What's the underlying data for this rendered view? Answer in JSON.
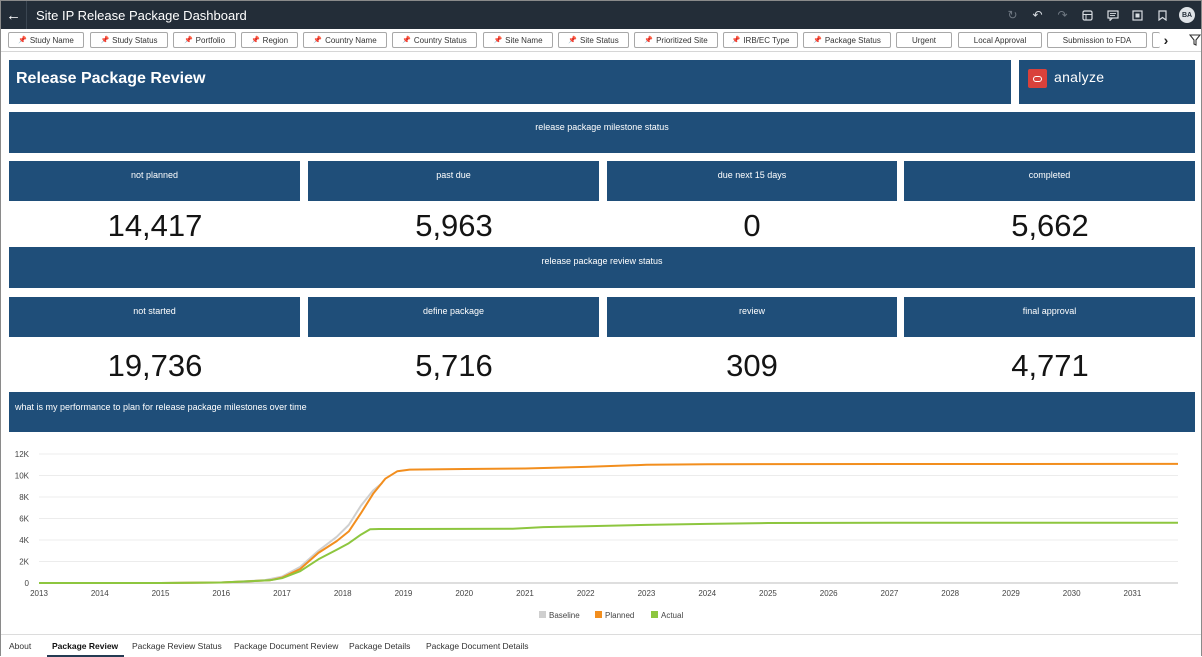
{
  "window": {
    "title": "Site IP Release Package Dashboard",
    "avatar_initials": "BA",
    "toolbar_icons": [
      "refresh-icon",
      "undo-icon",
      "redo-icon",
      "data-icon",
      "comment-icon",
      "present-icon",
      "bookmark-icon"
    ]
  },
  "filters": [
    "Study Name",
    "Study Status",
    "Portfolio",
    "Region",
    "Country Name",
    "Country Status",
    "Site Name",
    "Site Status",
    "Prioritized Site",
    "IRB/EC Type",
    "Package Status",
    "Urgent",
    "Local Approval",
    "Submission to FDA",
    ""
  ],
  "header": {
    "title": "Release Package Review",
    "analyze_label": "analyze",
    "brand_color": "#1f4e79",
    "logo_color": "#d9413b"
  },
  "milestone_status": {
    "banner": "release package milestone status",
    "cards": [
      {
        "label": "not planned",
        "value": "14,417"
      },
      {
        "label": "past due",
        "value": "5,963"
      },
      {
        "label": "due next 15 days",
        "value": "0"
      },
      {
        "label": "completed",
        "value": "5,662"
      }
    ]
  },
  "review_status": {
    "banner": "release package review status",
    "cards": [
      {
        "label": "not started",
        "value": "19,736"
      },
      {
        "label": "define package",
        "value": "5,716"
      },
      {
        "label": "review",
        "value": "309"
      },
      {
        "label": "final approval",
        "value": "4,771"
      }
    ]
  },
  "chart_header": "what is my performance to plan for release package milestones over time",
  "chart_data": {
    "type": "line",
    "title": "what is my performance to plan for release package milestones over time",
    "xlabel": "",
    "ylabel": "",
    "xlim": [
      2013,
      2031.75
    ],
    "ylim": [
      0,
      12000
    ],
    "yticks": [
      0,
      2000,
      4000,
      6000,
      8000,
      10000,
      12000
    ],
    "ytick_labels": [
      "0",
      "2K",
      "4K",
      "6K",
      "8K",
      "10K",
      "12K"
    ],
    "xticks": [
      "2013",
      "2014",
      "2015",
      "2016",
      "2017",
      "2018",
      "2019",
      "2020",
      "2021",
      "2022",
      "2023",
      "2024",
      "2025",
      "2026",
      "2027",
      "2028",
      "2029",
      "2030",
      "2031"
    ],
    "legend_position": "bottom",
    "grid": true,
    "series": [
      {
        "name": "Baseline",
        "color": "#cfcfcf",
        "points": [
          [
            2013,
            0
          ],
          [
            2015,
            0
          ],
          [
            2016,
            50
          ],
          [
            2016.7,
            250
          ],
          [
            2017,
            600
          ],
          [
            2017.3,
            1500
          ],
          [
            2017.6,
            3000
          ],
          [
            2017.9,
            4300
          ],
          [
            2018.1,
            5400
          ],
          [
            2018.3,
            7200
          ],
          [
            2018.5,
            8600
          ],
          [
            2018.65,
            9300
          ]
        ]
      },
      {
        "name": "Planned",
        "color": "#f28e1e",
        "points": [
          [
            2013,
            0
          ],
          [
            2015,
            0
          ],
          [
            2016,
            50
          ],
          [
            2016.8,
            250
          ],
          [
            2017,
            500
          ],
          [
            2017.3,
            1300
          ],
          [
            2017.6,
            2800
          ],
          [
            2017.9,
            3900
          ],
          [
            2018.1,
            4800
          ],
          [
            2018.3,
            6500
          ],
          [
            2018.5,
            8300
          ],
          [
            2018.7,
            9700
          ],
          [
            2018.9,
            10400
          ],
          [
            2019.1,
            10550
          ],
          [
            2020,
            10600
          ],
          [
            2021,
            10650
          ],
          [
            2022,
            10800
          ],
          [
            2023,
            11000
          ],
          [
            2024,
            11050
          ],
          [
            2025,
            11060
          ],
          [
            2027,
            11070
          ],
          [
            2031.75,
            11080
          ]
        ]
      },
      {
        "name": "Actual",
        "color": "#8dc63f",
        "points": [
          [
            2013,
            0
          ],
          [
            2015,
            0
          ],
          [
            2016,
            50
          ],
          [
            2016.8,
            250
          ],
          [
            2017,
            450
          ],
          [
            2017.3,
            1100
          ],
          [
            2017.6,
            2200
          ],
          [
            2017.9,
            3100
          ],
          [
            2018.1,
            3700
          ],
          [
            2018.3,
            4500
          ],
          [
            2018.45,
            5000
          ],
          [
            2018.6,
            5020
          ],
          [
            2019,
            5020
          ],
          [
            2020,
            5030
          ],
          [
            2020.8,
            5050
          ],
          [
            2021.3,
            5200
          ],
          [
            2022,
            5280
          ],
          [
            2023,
            5400
          ],
          [
            2024,
            5500
          ],
          [
            2025,
            5580
          ],
          [
            2027,
            5600
          ],
          [
            2031.75,
            5610
          ]
        ]
      }
    ]
  },
  "tabs": [
    {
      "label": "About",
      "active": false
    },
    {
      "label": "Package Review",
      "active": true
    },
    {
      "label": "Package Review Status",
      "active": false
    },
    {
      "label": "Package Document Review",
      "active": false
    },
    {
      "label": "Package Details",
      "active": false
    },
    {
      "label": "Package Document Details",
      "active": false
    }
  ]
}
